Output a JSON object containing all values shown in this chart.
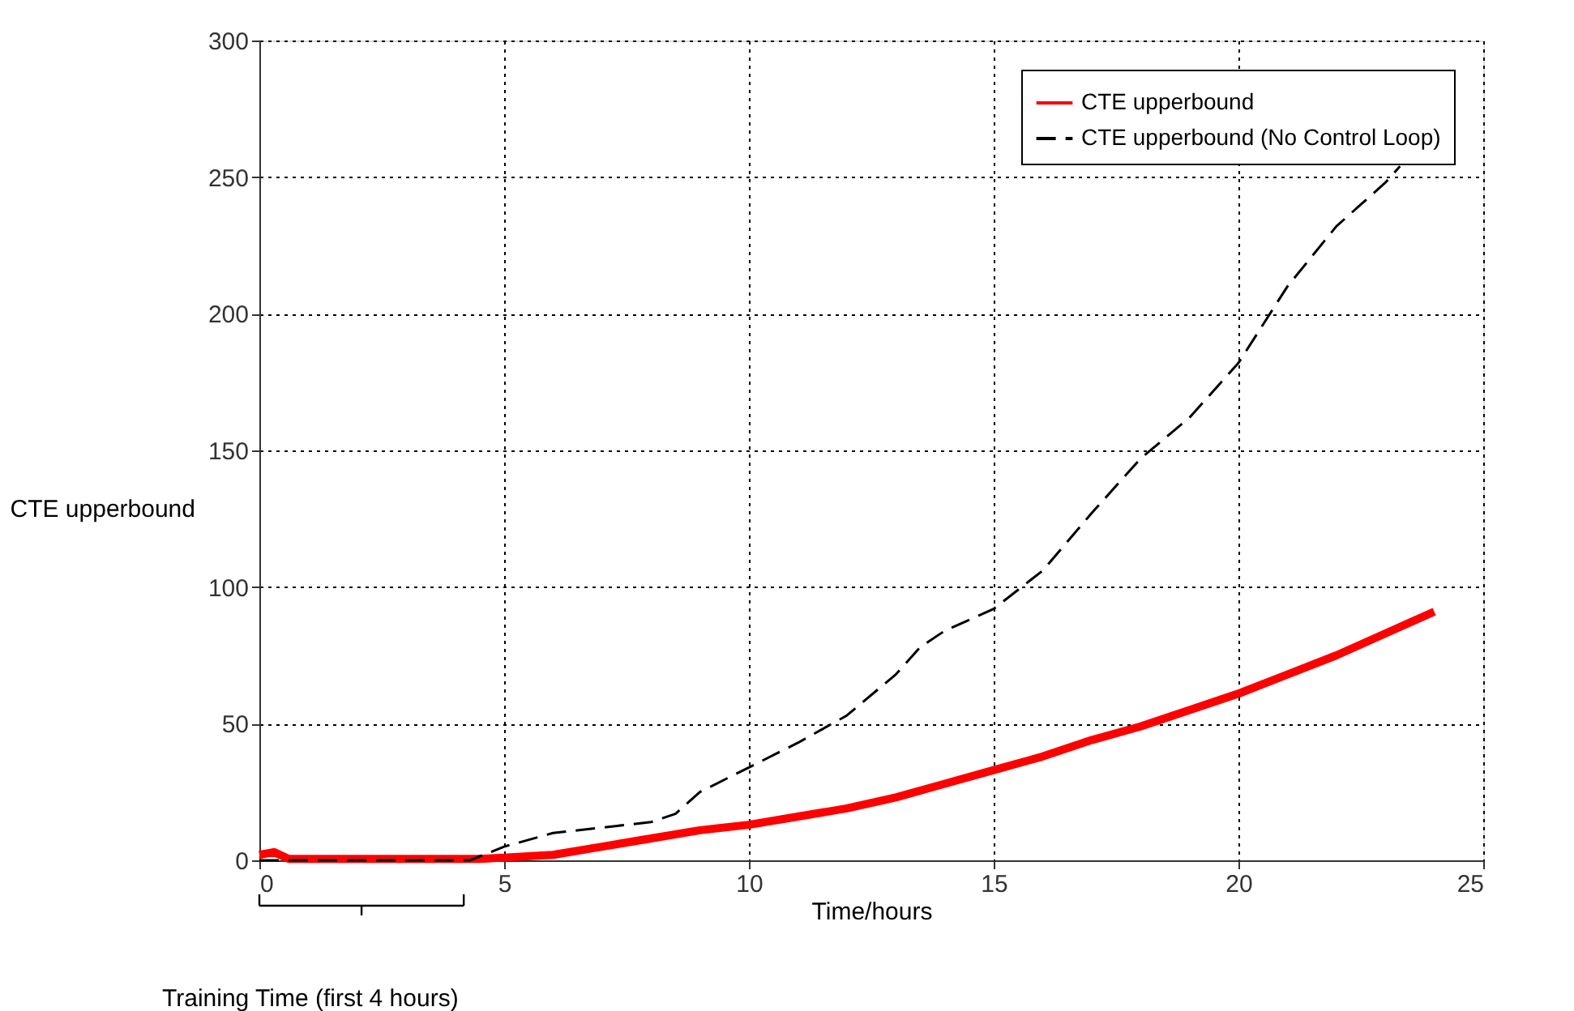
{
  "chart_data": {
    "type": "line",
    "xlabel": "Time/hours",
    "ylabel": "CTE upperbound",
    "xlim": [
      0,
      25
    ],
    "ylim": [
      0,
      300
    ],
    "xticks": [
      0,
      5,
      10,
      15,
      20,
      25
    ],
    "yticks": [
      0,
      50,
      100,
      150,
      200,
      250,
      300
    ],
    "grid": true,
    "legend": "top right",
    "marker": "none",
    "annotations": [
      "Training Time (first 4 hours)"
    ],
    "series": [
      {
        "name": "CTE upperbound",
        "color": "#ff0000",
        "line_style": "solid",
        "x": [
          0,
          0.3,
          0.6,
          1,
          2,
          3,
          4,
          4.5,
          5,
          6,
          7,
          8,
          9,
          10,
          11,
          12,
          13,
          14,
          15,
          16,
          17,
          18,
          19,
          20,
          21,
          22,
          23,
          24
        ],
        "values": [
          2,
          3,
          0.5,
          0.5,
          0.5,
          0.5,
          0.5,
          0.5,
          1,
          2,
          5,
          8,
          11,
          13,
          16,
          19,
          23,
          28,
          33,
          38,
          44,
          49,
          55,
          61,
          68,
          75,
          83,
          91
        ]
      },
      {
        "name": "CTE upperbound (No Control Loop)",
        "color": "#000000",
        "line_style": "dashed",
        "x": [
          0,
          1,
          2,
          3,
          4,
          4.3,
          5,
          6,
          7,
          8,
          8.5,
          9,
          10,
          11,
          12,
          13,
          13.5,
          14,
          15,
          16,
          17,
          17.5,
          18,
          19,
          20,
          21,
          22,
          22.5,
          23,
          23.3
        ],
        "values": [
          0,
          0,
          0,
          0,
          0,
          0,
          5,
          10,
          12,
          14,
          17,
          25,
          34,
          43,
          53,
          68,
          78,
          84,
          92,
          106,
          127,
          137,
          147,
          162,
          182,
          210,
          232,
          240,
          248,
          254
        ]
      }
    ]
  }
}
